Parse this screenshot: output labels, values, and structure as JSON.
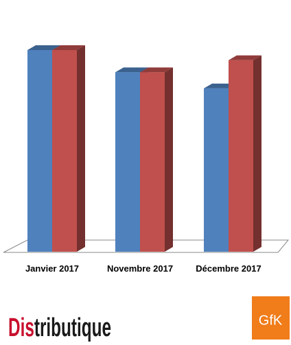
{
  "chart_data": {
    "type": "bar3d",
    "categories": [
      "Janvier 2017",
      "Novembre 2017",
      "Décembre 2017"
    ],
    "series": [
      {
        "color": "#4f81bd",
        "values": [
          100,
          89,
          81
        ]
      },
      {
        "color": "#c0504d",
        "values": [
          100,
          89,
          95
        ]
      }
    ]
  },
  "logos": {
    "distributique": [
      "Dis",
      "tributique"
    ],
    "gfk": "GfK"
  }
}
